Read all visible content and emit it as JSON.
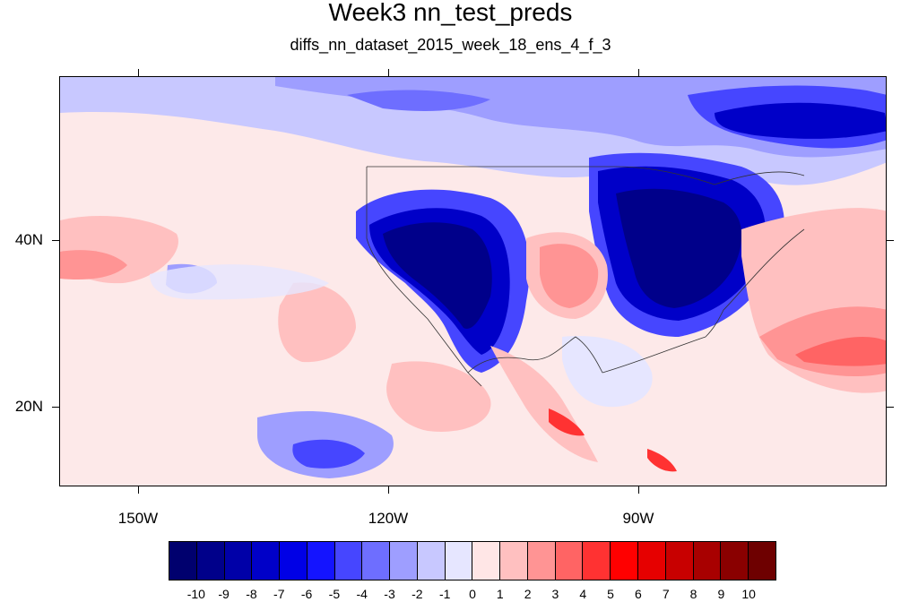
{
  "title": "Week3 nn_test_preds",
  "subtitle": "diffs_nn_dataset_2015_week_18_ens_4_f_3",
  "axes": {
    "lon_labels": [
      "150W",
      "120W",
      "90W"
    ],
    "lat_labels": [
      "40N",
      "20N"
    ]
  },
  "colorbar": {
    "labels": [
      "-10",
      "-9",
      "-8",
      "-7",
      "-6",
      "-5",
      "-4",
      "-3",
      "-2",
      "-1",
      "0",
      "1",
      "2",
      "3",
      "4",
      "5",
      "6",
      "7",
      "8",
      "9",
      "10"
    ],
    "colors": [
      "#00006e",
      "#00008a",
      "#0000a8",
      "#0000c8",
      "#0000e6",
      "#1414ff",
      "#4646ff",
      "#6e6eff",
      "#9e9eff",
      "#c8c8ff",
      "#e6e6ff",
      "#ffe6e6",
      "#ffc0c0",
      "#ff9494",
      "#ff6464",
      "#ff3232",
      "#ff0000",
      "#e60000",
      "#c80000",
      "#a80000",
      "#8a0000",
      "#6e0000"
    ]
  }
}
